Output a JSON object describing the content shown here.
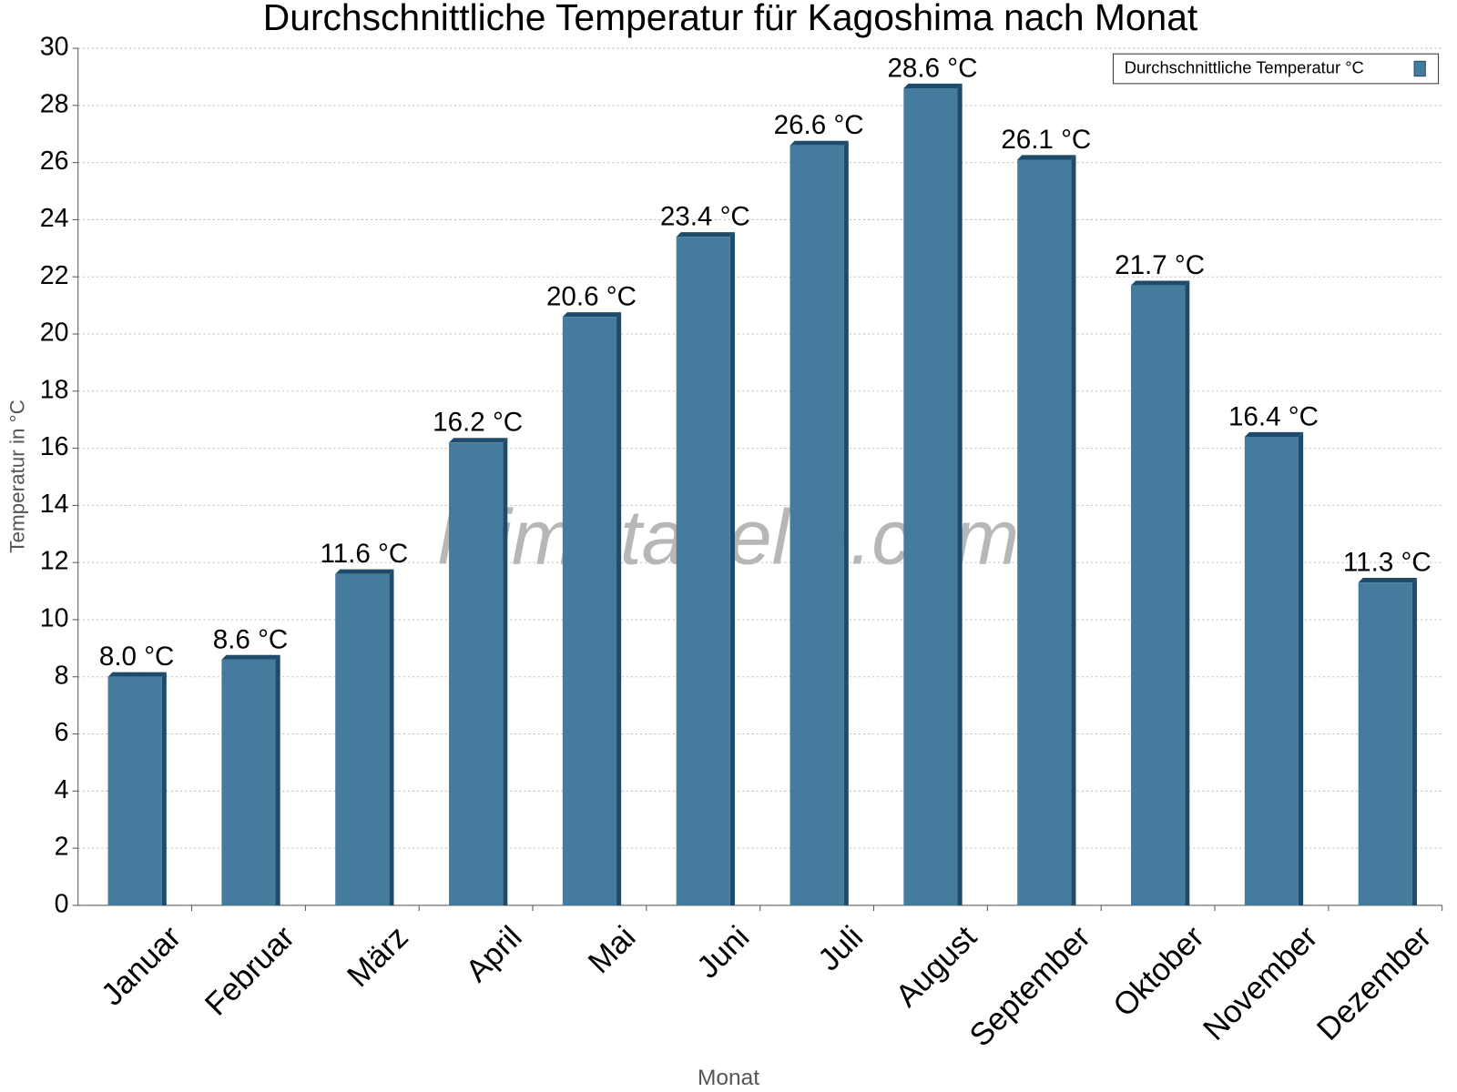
{
  "chart_data": {
    "type": "bar",
    "title": "Durchschnittliche Temperatur für Kagoshima nach Monat",
    "watermark": "klimatabelle.com",
    "x_label": "Monat",
    "y_label": "Temperatur in °C",
    "categories": [
      "Januar",
      "Februar",
      "März",
      "April",
      "Mai",
      "Juni",
      "Juli",
      "August",
      "September",
      "Oktober",
      "November",
      "Dezember"
    ],
    "series": [
      {
        "name": "Durchschnittliche Temperatur °C",
        "color": "#457b9d",
        "values": [
          8.0,
          8.6,
          11.6,
          16.2,
          20.6,
          23.4,
          26.6,
          28.6,
          26.1,
          21.7,
          16.4,
          11.3
        ],
        "value_labels": [
          "8.0 °C",
          "8.6 °C",
          "11.6 °C",
          "16.2 °C",
          "20.6 °C",
          "23.4 °C",
          "26.6 °C",
          "28.6 °C",
          "26.1 °C",
          "21.7 °C",
          "16.4 °C",
          "11.3 °C"
        ]
      }
    ],
    "ylim": [
      0,
      30
    ],
    "yticks": [
      0,
      2,
      4,
      6,
      8,
      10,
      12,
      14,
      16,
      18,
      20,
      22,
      24,
      26,
      28,
      30
    ],
    "grid": true,
    "legend": "top-right"
  }
}
